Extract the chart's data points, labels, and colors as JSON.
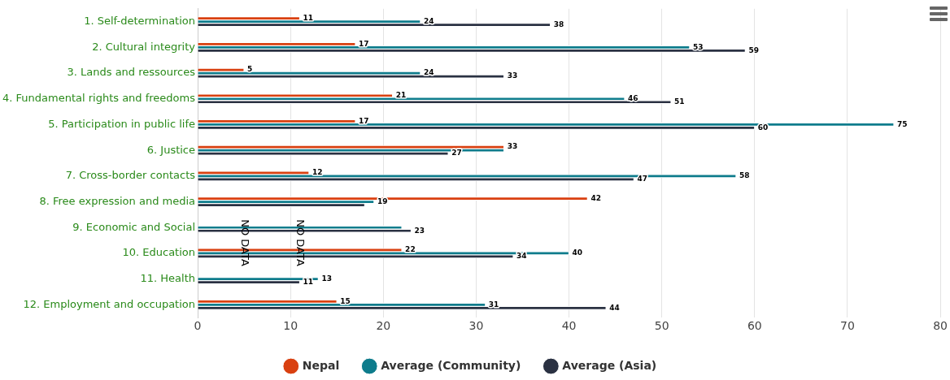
{
  "chart_data": {
    "type": "bar",
    "orientation": "horizontal",
    "categories": [
      "1. Self-determination",
      "2. Cultural integrity",
      "3. Lands and ressources",
      "4. Fundamental rights and freedoms",
      "5. Participation in public life",
      "6. Justice",
      "7. Cross-border contacts",
      "8. Free expression and media",
      "9. Economic and Social",
      "10. Education",
      "11. Health",
      "12. Employment and occupation"
    ],
    "series": [
      {
        "name": "Nepal",
        "color": "#d94010",
        "values": [
          11,
          17,
          5,
          21,
          17,
          33,
          12,
          42,
          null,
          22,
          null,
          15
        ],
        "value_labels": [
          "11",
          "17",
          "5",
          "21",
          "17",
          "33",
          "12",
          "42",
          null,
          "22",
          null,
          "15"
        ]
      },
      {
        "name": "Average (Community)",
        "color": "#0e7c8c",
        "values": [
          24,
          53,
          24,
          46,
          75,
          33,
          58,
          19,
          22,
          40,
          13,
          31
        ],
        "value_labels": [
          "24",
          "53",
          "24",
          "46",
          "75",
          null,
          "58",
          "19",
          null,
          "40",
          "13",
          "31"
        ]
      },
      {
        "name": "Average (Asia)",
        "color": "#2a3142",
        "values": [
          38,
          59,
          33,
          51,
          60,
          27,
          47,
          18,
          23,
          34,
          11,
          44
        ],
        "value_labels": [
          "38",
          "59",
          "33",
          "51",
          "60",
          "27",
          "47",
          null,
          "23",
          "34",
          "11",
          "44"
        ]
      }
    ],
    "xlim": [
      0,
      80
    ],
    "xticks": [
      0,
      10,
      20,
      30,
      40,
      50,
      60,
      70,
      80
    ],
    "grid": "x",
    "legend": "bottom",
    "annotations": [
      {
        "text": "NO DATA",
        "x": 5,
        "y": "9. Economic and Social"
      },
      {
        "text": "NO DATA",
        "x": 11,
        "y": "9. Economic and Social"
      }
    ]
  }
}
